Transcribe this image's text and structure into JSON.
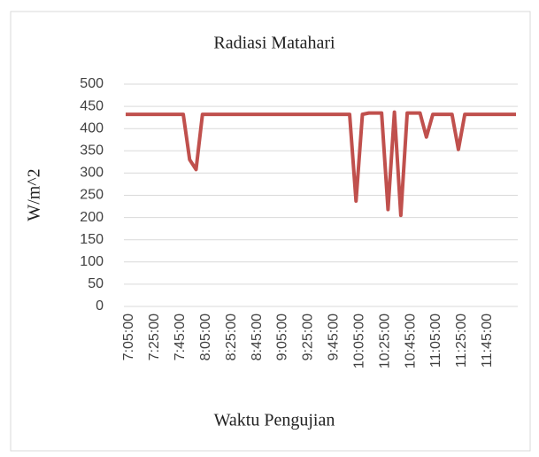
{
  "chart_data": {
    "type": "line",
    "title": "Radiasi Matahari",
    "x_label": "Waktu Pengujian",
    "y_label": "W/m^2",
    "categories": [
      "7:05:00",
      null,
      null,
      null,
      "7:25:00",
      null,
      null,
      null,
      "7:45:00",
      null,
      null,
      null,
      "8:05:00",
      null,
      null,
      null,
      "8:25:00",
      null,
      null,
      null,
      "8:45:00",
      null,
      null,
      null,
      "9:05:00",
      null,
      null,
      null,
      "9:25:00",
      null,
      null,
      null,
      "9:45:00",
      null,
      null,
      null,
      "10:05:00",
      null,
      null,
      null,
      "10:25:00",
      null,
      null,
      null,
      "10:45:00",
      null,
      null,
      null,
      "11:05:00",
      null,
      null,
      null,
      "11:25:00",
      null,
      null,
      null,
      "11:45:00",
      null,
      null,
      null,
      null,
      null
    ],
    "series": [
      {
        "name": "Radiasi Matahari",
        "color": "#c0504d",
        "values": [
          432,
          432,
          432,
          432,
          432,
          432,
          432,
          432,
          432,
          432,
          330,
          308,
          432,
          432,
          432,
          432,
          432,
          432,
          432,
          432,
          432,
          432,
          432,
          432,
          432,
          432,
          432,
          432,
          432,
          432,
          432,
          432,
          432,
          432,
          432,
          432,
          237,
          432,
          435,
          435,
          435,
          218,
          437,
          205,
          435,
          435,
          435,
          381,
          432,
          432,
          432,
          432,
          353,
          432,
          432,
          432,
          432,
          432,
          432,
          432,
          432,
          432
        ]
      }
    ],
    "ylim": [
      0,
      500
    ],
    "yticks": [
      0,
      50,
      100,
      150,
      200,
      250,
      300,
      350,
      400,
      450,
      500
    ],
    "grid": true
  }
}
